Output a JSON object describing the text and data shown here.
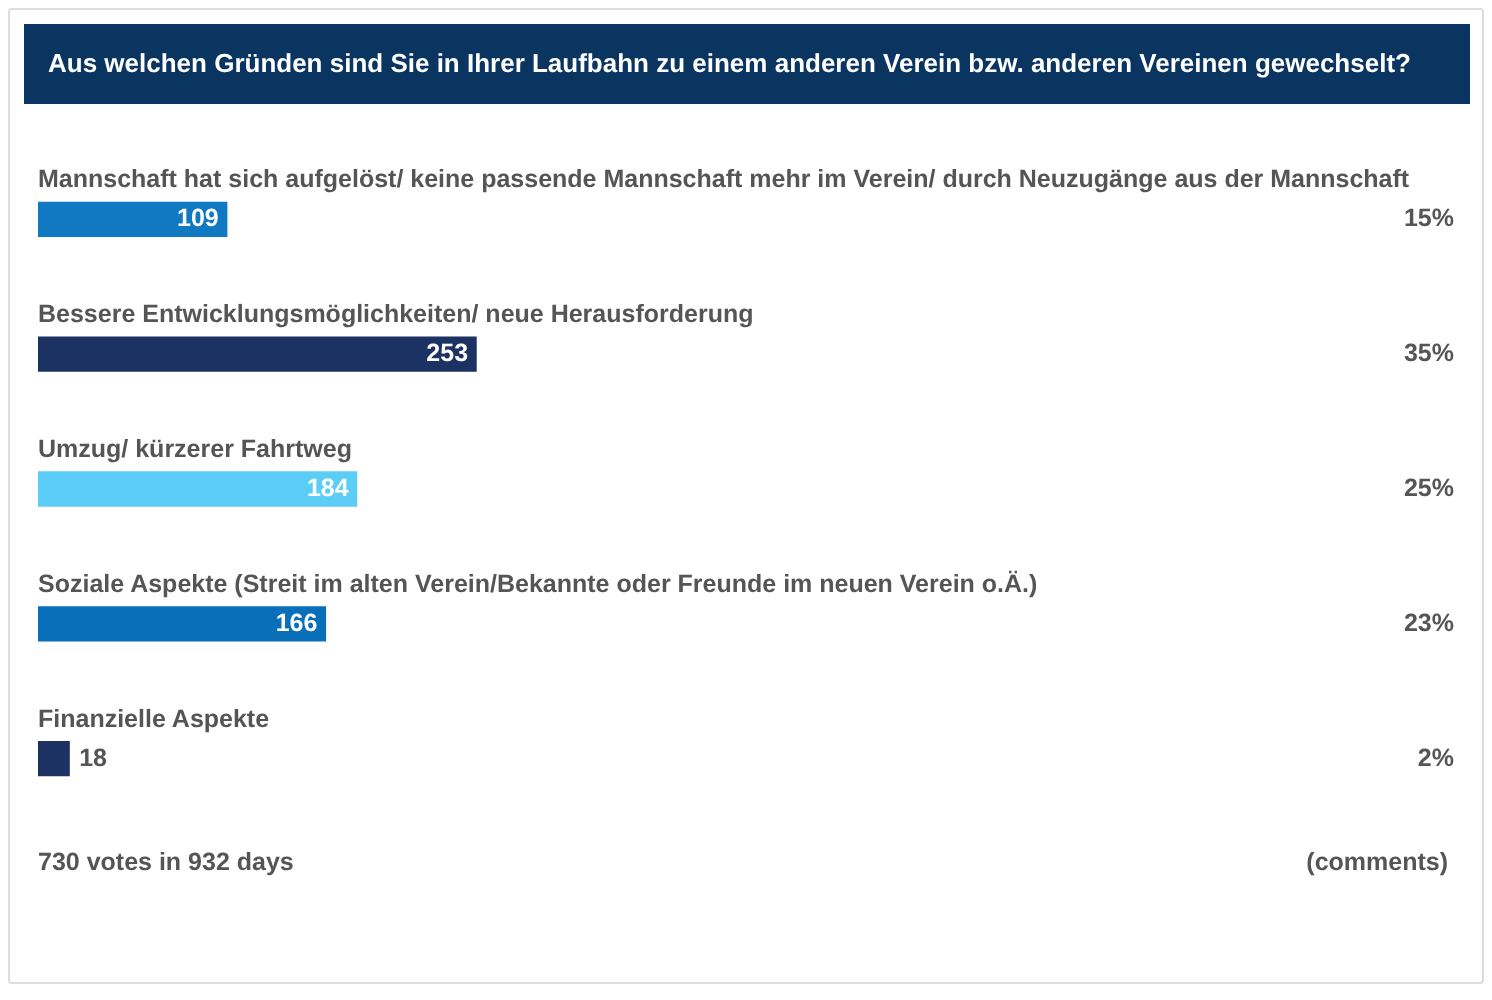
{
  "chart_data": {
    "type": "bar",
    "orientation": "horizontal",
    "title": "Aus welchen Gründen sind Sie in Ihrer Laufbahn zu einem anderen Verein bzw. anderen Vereinen gewechselt?",
    "categories": [
      "Mannschaft hat sich aufgelöst/ keine passende Mannschaft mehr im Verein/ durch Neuzugänge aus der Mannschaft",
      "Bessere Entwicklungsmöglichkeiten/ neue Herausforderung",
      "Umzug/ kürzerer Fahrtweg",
      "Soziale Aspekte (Streit im alten Verein/Bekannte oder Freunde im neuen Verein o.Ä.)",
      "Finanzielle Aspekte"
    ],
    "values": [
      109,
      253,
      184,
      166,
      18
    ],
    "colors": [
      "#1079c1",
      "#1c3262",
      "#5ccdf7",
      "#0a6fb9",
      "#1c3262"
    ],
    "tick_labels": false,
    "data_labels": true,
    "annotations": [
      "15%",
      "35%",
      "25%",
      "23%",
      "2%",
      "730 votes in 932 days",
      "(comments)"
    ]
  }
}
